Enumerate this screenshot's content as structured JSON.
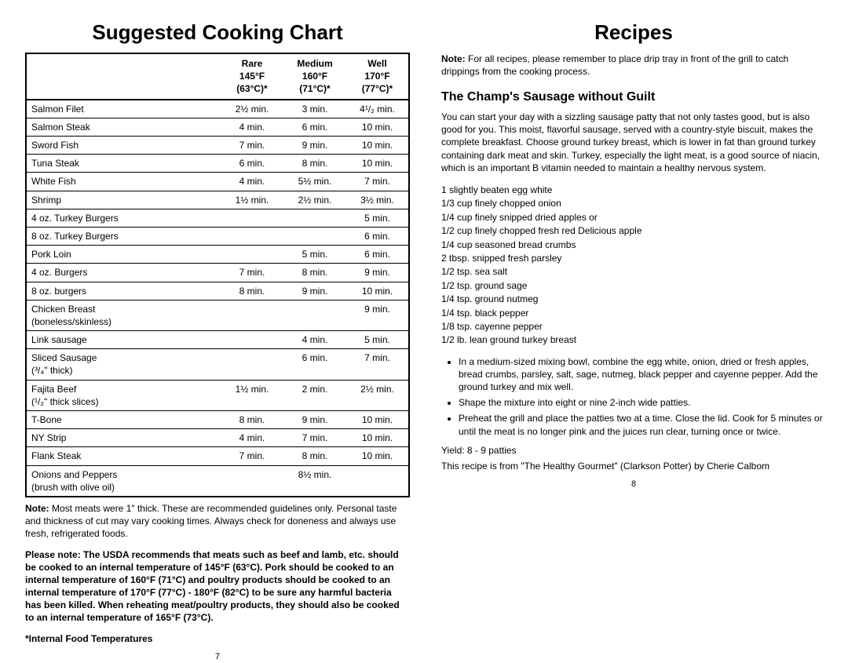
{
  "left": {
    "title": "Suggested Cooking Chart",
    "headers": {
      "blank": "",
      "rare1": "Rare",
      "rare2": "145°F (63°C)*",
      "med1": "Medium",
      "med2": "160°F (71°C)*",
      "well1": "Well",
      "well2": "170°F (77°C)*"
    },
    "rows": [
      {
        "name": "Salmon Filet",
        "rare": "2½ min.",
        "med": "3 min.",
        "well": "4¹/₂ min."
      },
      {
        "name": "Salmon Steak",
        "rare": "4 min.",
        "med": "6 min.",
        "well": "10 min."
      },
      {
        "name": "Sword Fish",
        "rare": "7 min.",
        "med": "9 min.",
        "well": "10 min."
      },
      {
        "name": "Tuna Steak",
        "rare": "6 min.",
        "med": "8 min.",
        "well": "10 min."
      },
      {
        "name": "White Fish",
        "rare": "4 min.",
        "med": "5½ min.",
        "well": "7 min."
      },
      {
        "name": "Shrimp",
        "rare": "1½ min.",
        "med": "2½ min.",
        "well": "3½ min."
      },
      {
        "name": "4 oz. Turkey Burgers",
        "rare": "",
        "med": "",
        "well": "5 min."
      },
      {
        "name": "8 oz. Turkey Burgers",
        "rare": "",
        "med": "",
        "well": "6 min."
      },
      {
        "name": "Pork Loin",
        "rare": "",
        "med": "5 min.",
        "well": "6 min."
      },
      {
        "name": "4 oz. Burgers",
        "rare": "7 min.",
        "med": "8 min.",
        "well": "9 min."
      },
      {
        "name": "8 oz. burgers",
        "rare": "8 min.",
        "med": "9 min.",
        "well": "10 min."
      },
      {
        "name": "Chicken Breast (boneless/skinless)",
        "rare": "",
        "med": "",
        "well": "9 min."
      },
      {
        "name": "Link sausage",
        "rare": "",
        "med": "4 min.",
        "well": "5 min."
      },
      {
        "name": "Sliced Sausage (³/₄\" thick)",
        "rare": "",
        "med": "6 min.",
        "well": "7 min."
      },
      {
        "name": "Fajita Beef (¹/₂\" thick slices)",
        "rare": "1½ min.",
        "med": "2 min.",
        "well": "2½ min."
      },
      {
        "name": "T-Bone",
        "rare": "8 min.",
        "med": "9 min.",
        "well": "10 min."
      },
      {
        "name": "NY Strip",
        "rare": "4 min.",
        "med": "7 min.",
        "well": "10 min."
      },
      {
        "name": "Flank Steak",
        "rare": "7 min.",
        "med": "8 min.",
        "well": "10 min."
      },
      {
        "name": "Onions and Peppers (brush with olive oil)",
        "rare": "",
        "med": "8½ min.",
        "well": ""
      }
    ],
    "note1_label": "Note:",
    "note1_body": " Most meats were 1\" thick. These are recommended guidelines only. Personal taste and thickness of cut may vary cooking times. Always check for doneness and always use fresh, refrigerated foods.",
    "note2": "Please note: The USDA recommends that meats such as beef and lamb, etc. should be cooked to an internal temperature of 145°F (63°C). Pork should be cooked to an internal temperature of 160°F (71°C) and poultry products should be cooked to an internal temperature of 170°F (77°C) - 180°F (82°C) to be sure any harmful bacteria has been killed. When reheating meat/poultry products, they should also be cooked to an internal temperature of 165°F (73°C).",
    "temp_footer": "*Internal Food Temperatures",
    "page": "7"
  },
  "right": {
    "title": "Recipes",
    "note_label": "Note:",
    "note_body": " For all recipes, please remember to place drip tray in front of the grill to catch drippings from the cooking process.",
    "recipe_title": "The Champ's Sausage without Guilt",
    "desc": "You can start your day with a sizzling sausage patty that not only tastes good, but is also good for you. This moist, flavorful sausage, served with a country-style biscuit, makes the complete breakfast. Choose ground turkey breast, which is lower in fat than ground turkey containing dark meat and skin. Turkey, especially the light meat, is a good source of niacin, which is an important B vitamin needed to maintain a healthy nervous system.",
    "ingredients": [
      "1 slightly beaten egg white",
      "1/3 cup finely chopped onion",
      "1/4 cup finely snipped dried apples or",
      "1/2 cup finely chopped fresh red Delicious apple",
      "1/4 cup seasoned bread crumbs",
      "2 tbsp. snipped fresh parsley",
      "1/2 tsp. sea salt",
      "1/2 tsp. ground sage",
      "1/4 tsp. ground nutmeg",
      "1/4 tsp. black pepper",
      "1/8 tsp. cayenne pepper",
      "1/2 lb. lean ground turkey breast"
    ],
    "steps": [
      "In a medium-sized mixing bowl, combine the egg white, onion, dried or fresh apples, bread crumbs, parsley, salt, sage, nutmeg, black pepper and cayenne pepper. Add the ground turkey and mix well.",
      "Shape the mixture into eight or nine 2-inch wide patties.",
      "Preheat the grill and place the patties two at a time. Close the lid. Cook for 5 minutes or until the meat is no longer pink and the juices run clear, turning once or twice."
    ],
    "yield": "Yield: 8 - 9 patties",
    "source": "This recipe is from \"The Healthy Gourmet\" (Clarkson Potter) by Cherie Calbom",
    "page": "8"
  },
  "style": {
    "body_font": "Arial, Helvetica, sans-serif",
    "body_bg": "#ffffff",
    "body_color": "#000000",
    "h1_size": "26px",
    "h2_size": "16px",
    "base_size": "12px",
    "border_color": "#000000"
  }
}
